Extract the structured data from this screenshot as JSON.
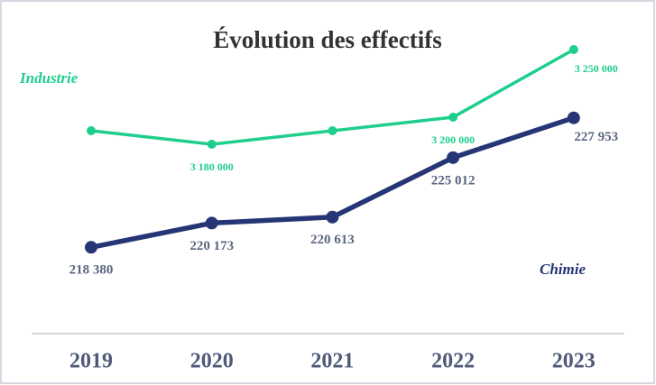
{
  "chart_data": {
    "type": "line",
    "title": "Évolution des effectifs",
    "categories": [
      "2019",
      "2020",
      "2021",
      "2022",
      "2023"
    ],
    "ylim": [
      212000,
      234000
    ],
    "y2lim": [
      3040000,
      3260000
    ],
    "series": [
      {
        "name": "Industrie",
        "color": "#1fce8c",
        "axis": "y2",
        "values": [
          3190000,
          3180000,
          3190000,
          3200000,
          3250000
        ],
        "value_labels": [
          null,
          "3 180 000",
          null,
          "3 200 000",
          "3 250 000"
        ]
      },
      {
        "name": "Chimie",
        "color": "#253575",
        "values": [
          218380,
          220173,
          220613,
          225012,
          227953
        ],
        "value_labels": [
          "218 380",
          "220 173",
          "220 613",
          "225 012",
          "227 953"
        ]
      }
    ]
  }
}
